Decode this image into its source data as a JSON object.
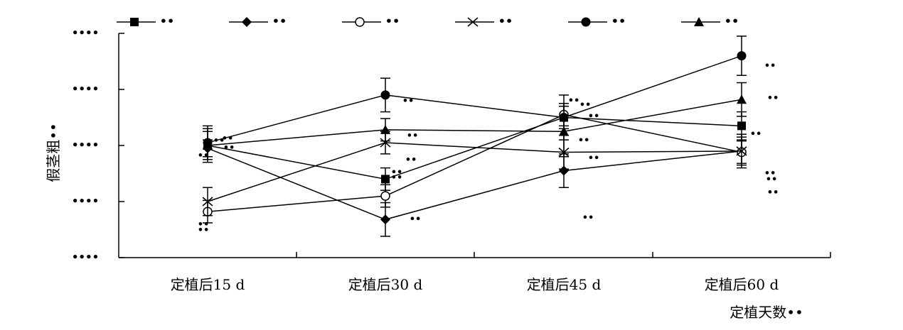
{
  "chart_data": {
    "type": "line",
    "ylabel": "假茎粗••",
    "xlabel": "定植天数••",
    "categories": [
      "定植后15 d",
      "定植后30 d",
      "定植后45 d",
      "定植后60 d"
    ],
    "ytick_labels": [
      "••••",
      "••••",
      "••••",
      "••••",
      "••••"
    ],
    "ylim": [
      0,
      4
    ],
    "grid": false,
    "legend_position": "top",
    "series": [
      {
        "name": "••",
        "marker": "square-filled",
        "values": [
          2.0,
          1.4,
          2.5,
          2.35
        ],
        "err": [
          0.25,
          0.2,
          0.2,
          0.25
        ],
        "sig_letters": [
          "••",
          "••",
          "••",
          "••"
        ]
      },
      {
        "name": "••",
        "marker": "diamond-filled",
        "values": [
          1.95,
          0.68,
          1.55,
          1.9
        ],
        "err": [
          0.15,
          0.3,
          0.3,
          0.25
        ],
        "sig_letters": [
          "••",
          "••",
          "••",
          "••"
        ]
      },
      {
        "name": "••",
        "marker": "circle-open",
        "values": [
          0.82,
          1.1,
          2.55,
          1.88
        ],
        "err": [
          0.2,
          0.2,
          0.2,
          0.2
        ],
        "sig_letters": [
          "••",
          "••",
          "••",
          "••"
        ]
      },
      {
        "name": "••",
        "marker": "cross",
        "values": [
          1.0,
          2.05,
          1.88,
          1.9
        ],
        "err": [
          0.25,
          0.2,
          0.3,
          0.3
        ],
        "sig_letters": [
          "••",
          "••",
          "••",
          "••"
        ]
      },
      {
        "name": "••",
        "marker": "circle-filled",
        "values": [
          2.05,
          2.9,
          2.5,
          3.6
        ],
        "err": [
          0.3,
          0.3,
          0.4,
          0.35
        ],
        "sig_letters": [
          "••",
          "••",
          "••",
          "••"
        ]
      },
      {
        "name": "••",
        "marker": "triangle-filled",
        "values": [
          2.0,
          2.28,
          2.25,
          2.82
        ],
        "err": [
          0.3,
          0.2,
          0.45,
          0.3
        ],
        "sig_letters": [
          "••",
          "••",
          "••",
          "••"
        ]
      }
    ]
  }
}
